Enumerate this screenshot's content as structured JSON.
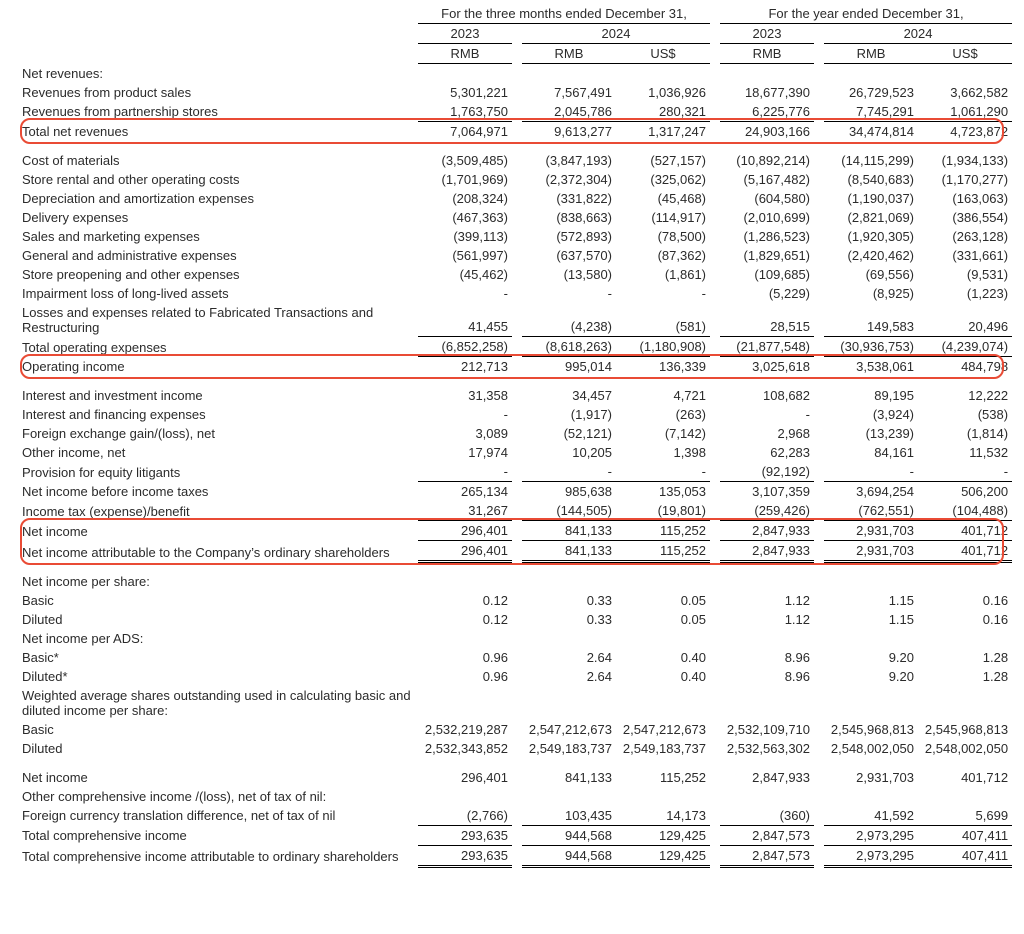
{
  "table": {
    "background_color": "#ffffff",
    "text_color": "#2b2b2b",
    "border_color": "#000000",
    "highlight_color": "#e94b35",
    "font_size_pt": 10,
    "column_headers": {
      "group_3m": "For the three months ended December 31,",
      "group_yr": "For the year ended December 31,",
      "y2023": "2023",
      "y2024": "2024",
      "rmb": "RMB",
      "usd": "US$"
    },
    "rows": [
      {
        "type": "section",
        "label": "Net revenues:"
      },
      {
        "label": "Revenues from product sales",
        "vals": [
          "5,301,221",
          "7,567,491",
          "1,036,926",
          "18,677,390",
          "26,729,523",
          "3,662,582"
        ]
      },
      {
        "label": "Revenues from partnership stores",
        "vals": [
          "1,763,750",
          "2,045,786",
          "280,321",
          "6,225,776",
          "7,745,291",
          "1,061,290"
        ],
        "underline_vals": true
      },
      {
        "label": "Total net revenues",
        "vals": [
          "7,064,971",
          "9,613,277",
          "1,317,247",
          "24,903,166",
          "34,474,814",
          "4,723,872"
        ],
        "highlight": true
      },
      {
        "type": "spacer"
      },
      {
        "label": "Cost of materials",
        "vals": [
          "(3,509,485)",
          "(3,847,193)",
          "(527,157)",
          "(10,892,214)",
          "(14,115,299)",
          "(1,934,133)"
        ]
      },
      {
        "label": "Store rental and other operating costs",
        "vals": [
          "(1,701,969)",
          "(2,372,304)",
          "(325,062)",
          "(5,167,482)",
          "(8,540,683)",
          "(1,170,277)"
        ]
      },
      {
        "label": "Depreciation and amortization expenses",
        "vals": [
          "(208,324)",
          "(331,822)",
          "(45,468)",
          "(604,580)",
          "(1,190,037)",
          "(163,063)"
        ]
      },
      {
        "label": "Delivery expenses",
        "vals": [
          "(467,363)",
          "(838,663)",
          "(114,917)",
          "(2,010,699)",
          "(2,821,069)",
          "(386,554)"
        ]
      },
      {
        "label": "Sales and marketing expenses",
        "vals": [
          "(399,113)",
          "(572,893)",
          "(78,500)",
          "(1,286,523)",
          "(1,920,305)",
          "(263,128)"
        ]
      },
      {
        "label": "General and administrative expenses",
        "vals": [
          "(561,997)",
          "(637,570)",
          "(87,362)",
          "(1,829,651)",
          "(2,420,462)",
          "(331,661)"
        ]
      },
      {
        "label": "Store preopening and other expenses",
        "vals": [
          "(45,462)",
          "(13,580)",
          "(1,861)",
          "(109,685)",
          "(69,556)",
          "(9,531)"
        ]
      },
      {
        "label": "Impairment loss of long-lived assets",
        "vals": [
          "-",
          "-",
          "-",
          "(5,229)",
          "(8,925)",
          "(1,223)"
        ]
      },
      {
        "label": "Losses and expenses related to Fabricated Transactions and Restructuring",
        "vals": [
          "41,455",
          "(4,238)",
          "(581)",
          "28,515",
          "149,583",
          "20,496"
        ]
      },
      {
        "label": "Total operating expenses",
        "vals": [
          "(6,852,258)",
          "(8,618,263)",
          "(1,180,908)",
          "(21,877,548)",
          "(30,936,753)",
          "(4,239,074)"
        ],
        "topline_vals": true,
        "underline_vals": true
      },
      {
        "label": "Operating income",
        "vals": [
          "212,713",
          "995,014",
          "136,339",
          "3,025,618",
          "3,538,061",
          "484,798"
        ],
        "highlight": true
      },
      {
        "type": "spacer"
      },
      {
        "label": "Interest and investment income",
        "vals": [
          "31,358",
          "34,457",
          "4,721",
          "108,682",
          "89,195",
          "12,222"
        ]
      },
      {
        "label": "Interest and financing expenses",
        "vals": [
          "-",
          "(1,917)",
          "(263)",
          "-",
          "(3,924)",
          "(538)"
        ]
      },
      {
        "label": "Foreign exchange gain/(loss), net",
        "vals": [
          "3,089",
          "(52,121)",
          "(7,142)",
          "2,968",
          "(13,239)",
          "(1,814)"
        ]
      },
      {
        "label": "Other income, net",
        "vals": [
          "17,974",
          "10,205",
          "1,398",
          "62,283",
          "84,161",
          "11,532"
        ]
      },
      {
        "label": "Provision for equity litigants",
        "vals": [
          "-",
          "-",
          "-",
          "(92,192)",
          "-",
          "-"
        ],
        "underline_vals": true
      },
      {
        "label": "Net income before income taxes",
        "vals": [
          "265,134",
          "985,638",
          "135,053",
          "3,107,359",
          "3,694,254",
          "506,200"
        ]
      },
      {
        "label": "Income tax (expense)/benefit",
        "vals": [
          "31,267",
          "(144,505)",
          "(19,801)",
          "(259,426)",
          "(762,551)",
          "(104,488)"
        ],
        "underline_vals": true
      },
      {
        "label": "Net income",
        "vals": [
          "296,401",
          "841,133",
          "115,252",
          "2,847,933",
          "2,931,703",
          "401,712"
        ],
        "highlight": "start"
      },
      {
        "label": "Net income attributable to the Company’s ordinary shareholders",
        "vals": [
          "296,401",
          "841,133",
          "115,252",
          "2,847,933",
          "2,931,703",
          "401,712"
        ],
        "doubleline_vals": true,
        "topline_vals": true,
        "highlight": "end"
      },
      {
        "type": "spacer"
      },
      {
        "type": "section",
        "label": "Net income per share:"
      },
      {
        "label": "Basic",
        "vals": [
          "0.12",
          "0.33",
          "0.05",
          "1.12",
          "1.15",
          "0.16"
        ]
      },
      {
        "label": "Diluted",
        "vals": [
          "0.12",
          "0.33",
          "0.05",
          "1.12",
          "1.15",
          "0.16"
        ]
      },
      {
        "type": "section",
        "label": "Net income per ADS:"
      },
      {
        "label": "Basic*",
        "vals": [
          "0.96",
          "2.64",
          "0.40",
          "8.96",
          "9.20",
          "1.28"
        ]
      },
      {
        "label": "Diluted*",
        "vals": [
          "0.96",
          "2.64",
          "0.40",
          "8.96",
          "9.20",
          "1.28"
        ]
      },
      {
        "type": "section",
        "label": "Weighted average shares outstanding used in calculating basic and diluted income per share:"
      },
      {
        "label": "Basic",
        "vals": [
          "2,532,219,287",
          "2,547,212,673",
          "2,547,212,673",
          "2,532,109,710",
          "2,545,968,813",
          "2,545,968,813"
        ]
      },
      {
        "label": "Diluted",
        "vals": [
          "2,532,343,852",
          "2,549,183,737",
          "2,549,183,737",
          "2,532,563,302",
          "2,548,002,050",
          "2,548,002,050"
        ]
      },
      {
        "type": "spacer"
      },
      {
        "label": "Net income",
        "vals": [
          "296,401",
          "841,133",
          "115,252",
          "2,847,933",
          "2,931,703",
          "401,712"
        ]
      },
      {
        "type": "section",
        "label": "Other comprehensive income /(loss), net of tax of nil:"
      },
      {
        "label": "Foreign currency translation difference, net of tax of nil",
        "vals": [
          "(2,766)",
          "103,435",
          "14,173",
          "(360)",
          "41,592",
          "5,699"
        ],
        "underline_vals": true
      },
      {
        "label": "Total comprehensive income",
        "vals": [
          "293,635",
          "944,568",
          "129,425",
          "2,847,573",
          "2,973,295",
          "407,411"
        ],
        "underline_vals": true
      },
      {
        "label": "Total comprehensive income attributable to ordinary shareholders",
        "vals": [
          "293,635",
          "944,568",
          "129,425",
          "2,847,573",
          "2,973,295",
          "407,411"
        ],
        "doubleline_vals": true
      }
    ]
  }
}
